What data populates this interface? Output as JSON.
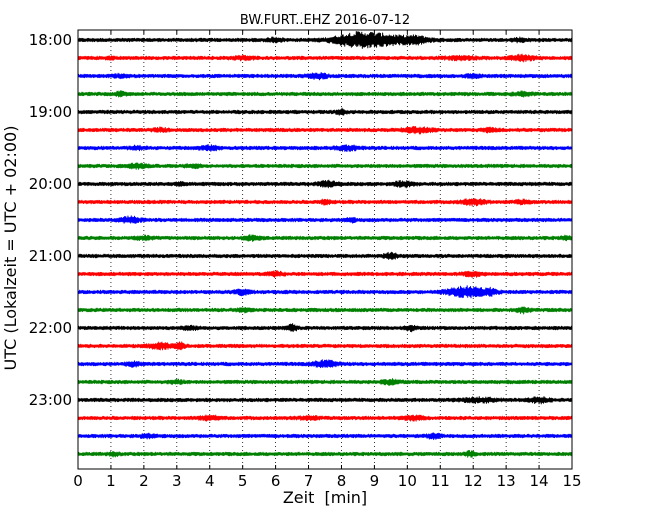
{
  "chart_data": {
    "type": "line",
    "title": "BW.FURT..EHZ 2016-07-12",
    "xlabel": "Zeit  [min]",
    "ylabel": "UTC (Lokalzeit = UTC + 02:00)",
    "xlim": [
      0,
      15
    ],
    "x_ticks": [
      0,
      1,
      2,
      3,
      4,
      5,
      6,
      7,
      8,
      9,
      10,
      11,
      12,
      13,
      14,
      15
    ],
    "x_tick_labels": [
      "0",
      "1",
      "2",
      "3",
      "4",
      "5",
      "6",
      "7",
      "8",
      "9",
      "10",
      "11",
      "12",
      "13",
      "14",
      "15"
    ],
    "y_tick_labels": [
      "18:00",
      "19:00",
      "20:00",
      "21:00",
      "22:00",
      "23:00"
    ],
    "grid": "vertical dotted",
    "trace_colors": [
      "#000000",
      "#ff0000",
      "#0000ff",
      "#008000"
    ],
    "trace_start_times": [
      "18:00",
      "18:15",
      "18:30",
      "18:45",
      "19:00",
      "19:15",
      "19:30",
      "19:45",
      "20:00",
      "20:15",
      "20:30",
      "20:45",
      "21:00",
      "21:15",
      "21:30",
      "21:45",
      "22:00",
      "22:15",
      "22:30",
      "22:45",
      "23:00",
      "23:15",
      "23:30",
      "23:45"
    ],
    "bursts": [
      [
        [
          8.4,
          0.9,
          1.0
        ],
        [
          9.2,
          1.3,
          1.0
        ],
        [
          10.3,
          0.5,
          0.5
        ],
        [
          6.0,
          0.3,
          0.4
        ],
        [
          13.4,
          0.3,
          0.3
        ]
      ],
      [
        [
          5.0,
          0.5,
          0.25
        ],
        [
          11.6,
          0.8,
          0.25
        ],
        [
          13.5,
          0.5,
          0.5
        ],
        [
          1.0,
          0.2,
          0.2
        ]
      ],
      [
        [
          7.3,
          0.4,
          0.5
        ],
        [
          1.3,
          0.3,
          0.3
        ],
        [
          12.0,
          0.3,
          0.3
        ]
      ],
      [
        [
          1.3,
          0.2,
          0.4
        ],
        [
          13.5,
          0.4,
          0.3
        ]
      ],
      [
        [
          8.0,
          0.2,
          0.5
        ]
      ],
      [
        [
          10.3,
          0.6,
          0.5
        ],
        [
          2.5,
          0.3,
          0.3
        ],
        [
          12.5,
          0.3,
          0.3
        ]
      ],
      [
        [
          8.2,
          0.5,
          0.4
        ],
        [
          4.0,
          0.4,
          0.4
        ],
        [
          1.8,
          0.3,
          0.3
        ]
      ],
      [
        [
          1.8,
          0.4,
          0.4
        ],
        [
          3.5,
          0.3,
          0.3
        ]
      ],
      [
        [
          7.6,
          0.4,
          0.5
        ],
        [
          9.9,
          0.4,
          0.5
        ],
        [
          3.1,
          0.2,
          0.3
        ]
      ],
      [
        [
          12.0,
          0.5,
          0.5
        ],
        [
          7.5,
          0.3,
          0.3
        ],
        [
          13.5,
          0.3,
          0.3
        ]
      ],
      [
        [
          1.6,
          0.4,
          0.6
        ],
        [
          8.3,
          0.2,
          0.3
        ]
      ],
      [
        [
          5.3,
          0.3,
          0.5
        ],
        [
          14.8,
          0.2,
          0.3
        ],
        [
          2.0,
          0.4,
          0.3
        ]
      ],
      [
        [
          9.5,
          0.3,
          0.5
        ]
      ],
      [
        [
          6.0,
          0.3,
          0.4
        ],
        [
          12.0,
          0.4,
          0.4
        ]
      ],
      [
        [
          11.8,
          0.8,
          1.0
        ],
        [
          5.0,
          0.3,
          0.5
        ],
        [
          12.5,
          0.3,
          0.5
        ]
      ],
      [
        [
          13.5,
          0.3,
          0.5
        ],
        [
          5.0,
          0.3,
          0.3
        ]
      ],
      [
        [
          6.5,
          0.2,
          0.6
        ],
        [
          10.1,
          0.2,
          0.5
        ],
        [
          3.4,
          0.3,
          0.3
        ]
      ],
      [
        [
          2.5,
          0.5,
          0.5
        ],
        [
          3.1,
          0.2,
          0.6
        ]
      ],
      [
        [
          7.5,
          0.5,
          0.6
        ],
        [
          1.7,
          0.3,
          0.4
        ]
      ],
      [
        [
          9.5,
          0.4,
          0.4
        ],
        [
          3.0,
          0.3,
          0.3
        ]
      ],
      [
        [
          12.2,
          0.7,
          0.4
        ],
        [
          14.0,
          0.4,
          0.5
        ]
      ],
      [
        [
          4.0,
          0.4,
          0.4
        ],
        [
          10.2,
          0.4,
          0.4
        ],
        [
          7.0,
          0.4,
          0.3
        ]
      ],
      [
        [
          10.8,
          0.3,
          0.5
        ],
        [
          2.1,
          0.3,
          0.3
        ]
      ],
      [
        [
          11.9,
          0.2,
          0.5
        ],
        [
          1.1,
          0.2,
          0.3
        ]
      ]
    ]
  }
}
